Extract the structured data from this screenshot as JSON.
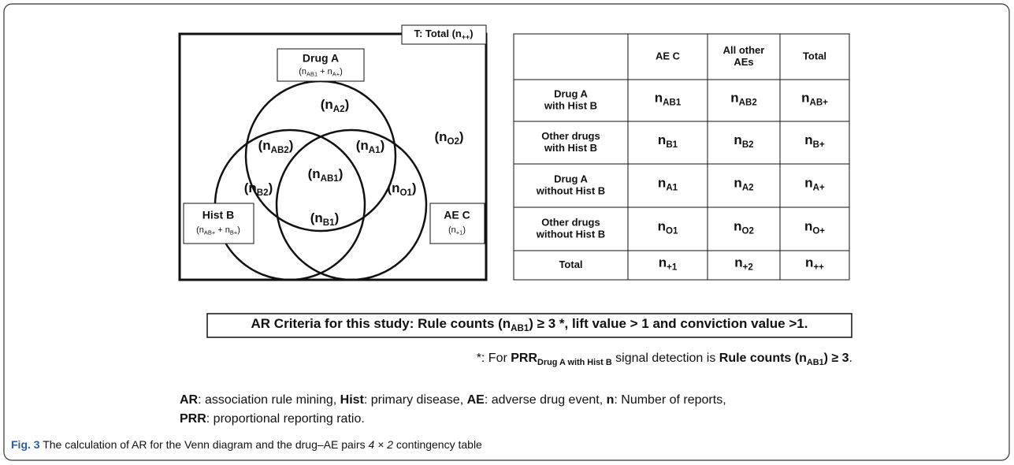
{
  "venn": {
    "total": [
      {
        "text": "T: Total ",
        "style": "b"
      },
      {
        "text": "(n",
        "style": "b"
      },
      {
        "text": "++",
        "style": "bsub"
      },
      {
        "text": ")",
        "style": "b"
      }
    ],
    "boxes": [
      {
        "title": "Drug A",
        "formula": [
          {
            "text": "(n"
          },
          {
            "text": "AB1",
            "style": "sub"
          },
          {
            "text": " + n"
          },
          {
            "text": "A+",
            "style": "sub"
          },
          {
            "text": ")"
          }
        ]
      },
      {
        "title": "Hist B",
        "formula": [
          {
            "text": "(n"
          },
          {
            "text": "AB+",
            "style": "sub"
          },
          {
            "text": " + n"
          },
          {
            "text": "B+",
            "style": "sub"
          },
          {
            "text": ")"
          }
        ]
      },
      {
        "title": "AE C",
        "formula": [
          {
            "text": "(n"
          },
          {
            "text": "+1",
            "style": "sub"
          },
          {
            "text": ")"
          }
        ]
      }
    ],
    "regions": [
      [
        {
          "text": "(n",
          "style": "b"
        },
        {
          "text": "A2",
          "style": "bsub"
        },
        {
          "text": ")",
          "style": "b"
        }
      ],
      [
        {
          "text": "(n",
          "style": "b"
        },
        {
          "text": "AB2",
          "style": "bsub"
        },
        {
          "text": ")",
          "style": "b"
        }
      ],
      [
        {
          "text": "(n",
          "style": "b"
        },
        {
          "text": "A1",
          "style": "bsub"
        },
        {
          "text": ")",
          "style": "b"
        }
      ],
      [
        {
          "text": "(n",
          "style": "b"
        },
        {
          "text": "O2",
          "style": "bsub"
        },
        {
          "text": ")",
          "style": "b"
        }
      ],
      [
        {
          "text": "(n",
          "style": "b"
        },
        {
          "text": "AB1",
          "style": "bsub"
        },
        {
          "text": ")",
          "style": "b"
        }
      ],
      [
        {
          "text": "(n",
          "style": "b"
        },
        {
          "text": "B2",
          "style": "bsub"
        },
        {
          "text": ")",
          "style": "b"
        }
      ],
      [
        {
          "text": "(n",
          "style": "b"
        },
        {
          "text": "O1",
          "style": "bsub"
        },
        {
          "text": ")",
          "style": "b"
        }
      ],
      [
        {
          "text": "(n",
          "style": "b"
        },
        {
          "text": "B1",
          "style": "bsub"
        },
        {
          "text": ")",
          "style": "b"
        }
      ]
    ]
  },
  "table": {
    "columns": [
      [
        "AE C"
      ],
      [
        "All other",
        "AEs"
      ],
      [
        "Total"
      ]
    ],
    "rows": [
      {
        "label": [
          "Drug A",
          "with Hist B"
        ],
        "cells": [
          [
            {
              "text": "n",
              "style": "b"
            },
            {
              "text": "AB1",
              "style": "bsub"
            }
          ],
          [
            {
              "text": "n",
              "style": "b"
            },
            {
              "text": "AB2",
              "style": "bsub"
            }
          ],
          [
            {
              "text": "n",
              "style": "b"
            },
            {
              "text": "AB+",
              "style": "bsub"
            }
          ]
        ]
      },
      {
        "label": [
          "Other drugs",
          "with Hist B"
        ],
        "cells": [
          [
            {
              "text": "n",
              "style": "b"
            },
            {
              "text": "B1",
              "style": "bsub"
            }
          ],
          [
            {
              "text": "n",
              "style": "b"
            },
            {
              "text": "B2",
              "style": "bsub"
            }
          ],
          [
            {
              "text": "n",
              "style": "b"
            },
            {
              "text": "B+",
              "style": "bsub"
            }
          ]
        ]
      },
      {
        "label": [
          "Drug A",
          "without Hist B"
        ],
        "cells": [
          [
            {
              "text": "n",
              "style": "b"
            },
            {
              "text": "A1",
              "style": "bsub"
            }
          ],
          [
            {
              "text": "n",
              "style": "b"
            },
            {
              "text": "A2",
              "style": "bsub"
            }
          ],
          [
            {
              "text": "n",
              "style": "b"
            },
            {
              "text": "A+",
              "style": "bsub"
            }
          ]
        ]
      },
      {
        "label": [
          "Other drugs",
          "without Hist B"
        ],
        "cells": [
          [
            {
              "text": "n",
              "style": "b"
            },
            {
              "text": "O1",
              "style": "bsub"
            }
          ],
          [
            {
              "text": "n",
              "style": "b"
            },
            {
              "text": "O2",
              "style": "bsub"
            }
          ],
          [
            {
              "text": "n",
              "style": "b"
            },
            {
              "text": "O+",
              "style": "bsub"
            }
          ]
        ]
      },
      {
        "label": [
          "Total"
        ],
        "cells": [
          [
            {
              "text": "n",
              "style": "b"
            },
            {
              "text": "+1",
              "style": "bsub"
            }
          ],
          [
            {
              "text": "n",
              "style": "b"
            },
            {
              "text": "+2",
              "style": "bsub"
            }
          ],
          [
            {
              "text": "n",
              "style": "b"
            },
            {
              "text": "++",
              "style": "bsub"
            }
          ]
        ]
      }
    ]
  },
  "criteria": [
    {
      "text": "AR Criteria for this study: Rule counts (n",
      "style": "b"
    },
    {
      "text": "AB1",
      "style": "bsub"
    },
    {
      "text": ") ≥ 3 *, lift value > 1 and conviction value >1.",
      "style": "b"
    }
  ],
  "footnote": [
    {
      "text": "*: For "
    },
    {
      "text": "PRR",
      "style": "b"
    },
    {
      "text": "Drug A with Hist B",
      "style": "bsub"
    },
    {
      "text": " signal detection is "
    },
    {
      "text": "Rule counts (n",
      "style": "b"
    },
    {
      "text": "AB1",
      "style": "bsub"
    },
    {
      "text": ") ≥ 3",
      "style": "b"
    },
    {
      "text": "."
    }
  ],
  "abbreviations": [
    [
      {
        "text": "AR",
        "style": "b"
      },
      {
        "text": ": association rule mining, "
      },
      {
        "text": "Hist",
        "style": "b"
      },
      {
        "text": ": primary disease, "
      },
      {
        "text": "AE",
        "style": "b"
      },
      {
        "text": ": adverse drug event, "
      },
      {
        "text": "n",
        "style": "b"
      },
      {
        "text": ": Number of reports,"
      }
    ],
    [
      {
        "text": "PRR",
        "style": "b"
      },
      {
        "text": ": proportional reporting ratio."
      }
    ]
  ],
  "caption": [
    {
      "text": "Fig. 3",
      "style": "fig"
    },
    {
      "text": " The calculation of AR for the Venn diagram and the drug–AE pairs "
    },
    {
      "text": "4 × 2",
      "style": "i"
    },
    {
      "text": " contingency table"
    }
  ]
}
